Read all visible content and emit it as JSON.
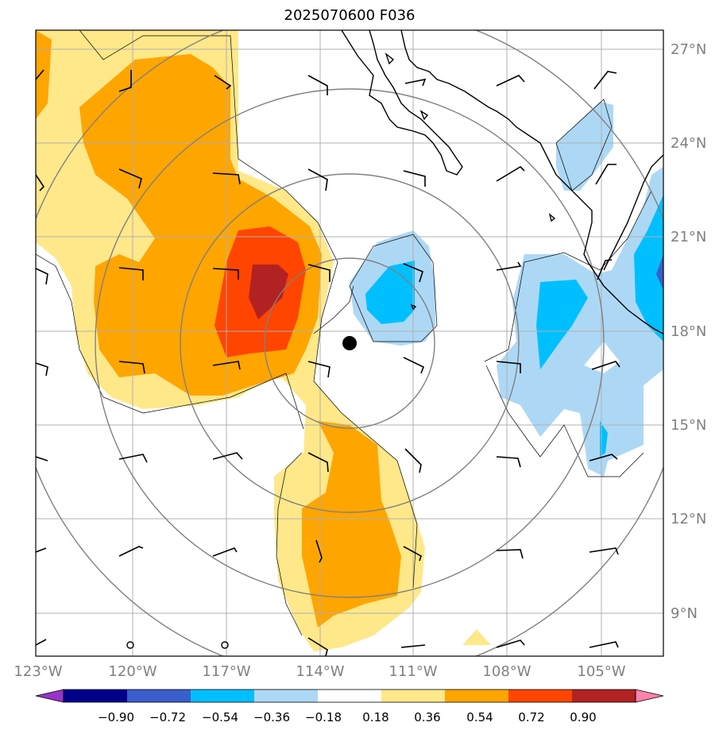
{
  "title": "2025070600 F036",
  "map": {
    "lon_labels": [
      "123°W",
      "120°W",
      "117°W",
      "114°W",
      "111°W",
      "108°W",
      "105°W"
    ],
    "lat_labels": [
      "27°N",
      "24°N",
      "21°N",
      "18°N",
      "15°N",
      "12°N",
      "9°N"
    ]
  },
  "colorbar": {
    "ticks": [
      "−0.90",
      "−0.72",
      "−0.54",
      "−0.36",
      "−0.18",
      "0.18",
      "0.36",
      "0.54",
      "0.72",
      "0.90"
    ],
    "colors": [
      "#9932cc",
      "#00008b",
      "#3a5fcd",
      "#00bfff",
      "#add8f5",
      "#ffffff",
      "#ffe88a",
      "#ffa500",
      "#ff4500",
      "#b22222",
      "#ff82ab"
    ]
  },
  "storm_center": {
    "lon": "112.8°W",
    "lat": "17.6°N"
  }
}
